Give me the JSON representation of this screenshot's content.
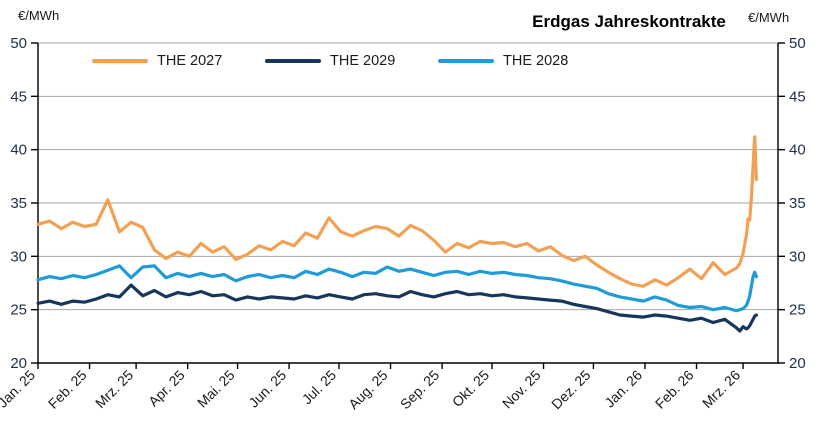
{
  "header": {
    "title": "Erdgas Jahreskontrakte",
    "unit_left": "€/MWh",
    "unit_right": "€/MWh"
  },
  "chart_data": {
    "type": "line",
    "title": "Erdgas Jahreskontrakte",
    "ylabel_left": "€/MWh",
    "ylabel_right": "€/MWh",
    "ylim": [
      20,
      50
    ],
    "yticks": [
      20,
      25,
      30,
      35,
      40,
      45,
      50
    ],
    "grid": "horizontal",
    "gridline_color": "#a6a6a6",
    "axis_color": "#000000",
    "legend_position": "top-inside",
    "legend_order": [
      "THE 2027",
      "THE 2029",
      "THE 2028"
    ],
    "x_unit": "days since 2025-01-01",
    "x_domain": [
      0,
      445
    ],
    "x_ticks": [
      {
        "label": "Jan. 25",
        "day": 0
      },
      {
        "label": "Feb. 25",
        "day": 31
      },
      {
        "label": "Mrz. 25",
        "day": 59
      },
      {
        "label": "Apr. 25",
        "day": 90
      },
      {
        "label": "Mai. 25",
        "day": 120
      },
      {
        "label": "Jun. 25",
        "day": 151
      },
      {
        "label": "Jul. 25",
        "day": 181
      },
      {
        "label": "Aug. 25",
        "day": 212
      },
      {
        "label": "Sep. 25",
        "day": 243
      },
      {
        "label": "Okt. 25",
        "day": 273
      },
      {
        "label": "Nov. 25",
        "day": 304
      },
      {
        "label": "Dez. 25",
        "day": 334
      },
      {
        "label": "Jan. 26",
        "day": 365
      },
      {
        "label": "Feb. 26",
        "day": 396
      },
      {
        "label": "Mrz. 26",
        "day": 424
      }
    ],
    "x_days": [
      0,
      7,
      14,
      21,
      28,
      35,
      42,
      49,
      56,
      63,
      70,
      77,
      84,
      91,
      98,
      105,
      112,
      119,
      126,
      133,
      140,
      147,
      154,
      161,
      168,
      175,
      182,
      189,
      196,
      203,
      210,
      217,
      224,
      231,
      238,
      245,
      252,
      259,
      266,
      273,
      280,
      287,
      294,
      301,
      308,
      315,
      322,
      329,
      336,
      343,
      350,
      357,
      364,
      371,
      378,
      385,
      392,
      399,
      406,
      413,
      420,
      422,
      424,
      426,
      427,
      428,
      429,
      430,
      431,
      432
    ],
    "series": [
      {
        "name": "THE 2027",
        "color": "#F2A154",
        "values": [
          33.0,
          33.3,
          32.6,
          33.2,
          32.8,
          33.0,
          35.3,
          32.3,
          33.2,
          32.7,
          30.6,
          29.8,
          30.4,
          30.0,
          31.2,
          30.4,
          30.9,
          29.7,
          30.2,
          31.0,
          30.6,
          31.4,
          31.0,
          32.2,
          31.7,
          33.6,
          32.3,
          31.9,
          32.4,
          32.8,
          32.6,
          31.9,
          32.9,
          32.4,
          31.5,
          30.4,
          31.2,
          30.8,
          31.4,
          31.2,
          31.3,
          30.9,
          31.2,
          30.5,
          30.9,
          30.1,
          29.6,
          30.0,
          29.2,
          28.5,
          27.9,
          27.4,
          27.2,
          27.8,
          27.3,
          28.0,
          28.8,
          27.9,
          29.4,
          28.3,
          28.9,
          29.3,
          30.3,
          32.0,
          33.5,
          33.4,
          35.5,
          38.5,
          41.2,
          37.2
        ]
      },
      {
        "name": "THE 2029",
        "color": "#17365C",
        "values": [
          25.6,
          25.8,
          25.5,
          25.8,
          25.7,
          26.0,
          26.4,
          26.2,
          27.3,
          26.3,
          26.8,
          26.2,
          26.6,
          26.4,
          26.7,
          26.3,
          26.4,
          25.9,
          26.2,
          26.0,
          26.2,
          26.1,
          26.0,
          26.3,
          26.1,
          26.4,
          26.2,
          26.0,
          26.4,
          26.5,
          26.3,
          26.2,
          26.7,
          26.4,
          26.2,
          26.5,
          26.7,
          26.4,
          26.5,
          26.3,
          26.4,
          26.2,
          26.1,
          26.0,
          25.9,
          25.8,
          25.5,
          25.3,
          25.1,
          24.8,
          24.5,
          24.4,
          24.3,
          24.5,
          24.4,
          24.2,
          24.0,
          24.2,
          23.8,
          24.1,
          23.3,
          23.0,
          23.4,
          23.2,
          23.3,
          23.5,
          23.8,
          24.1,
          24.4,
          24.5
        ]
      },
      {
        "name": "THE 2028",
        "color": "#1F9BD7",
        "values": [
          27.8,
          28.1,
          27.9,
          28.2,
          28.0,
          28.3,
          28.7,
          29.1,
          28.0,
          29.0,
          29.1,
          28.0,
          28.4,
          28.1,
          28.4,
          28.1,
          28.3,
          27.7,
          28.1,
          28.3,
          28.0,
          28.2,
          28.0,
          28.6,
          28.3,
          28.8,
          28.5,
          28.1,
          28.5,
          28.4,
          29.0,
          28.6,
          28.8,
          28.5,
          28.2,
          28.5,
          28.6,
          28.3,
          28.6,
          28.4,
          28.5,
          28.3,
          28.2,
          28.0,
          27.9,
          27.7,
          27.4,
          27.2,
          27.0,
          26.5,
          26.2,
          26.0,
          25.8,
          26.2,
          25.9,
          25.4,
          25.2,
          25.3,
          25.0,
          25.2,
          24.9,
          25.0,
          25.1,
          25.4,
          25.8,
          26.3,
          27.2,
          28.1,
          28.5,
          28.1
        ]
      }
    ]
  }
}
